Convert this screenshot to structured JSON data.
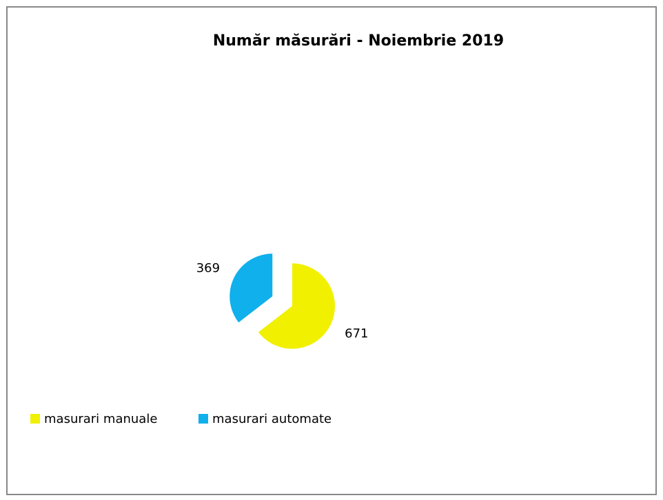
{
  "chart_data": {
    "type": "pie",
    "title": "Număr măsurări - Noiembrie 2019",
    "categories": [
      "masurari manuale",
      "masurari automate"
    ],
    "values": [
      671,
      369
    ],
    "colors": [
      "#f0f000",
      "#10b0ec"
    ]
  }
}
